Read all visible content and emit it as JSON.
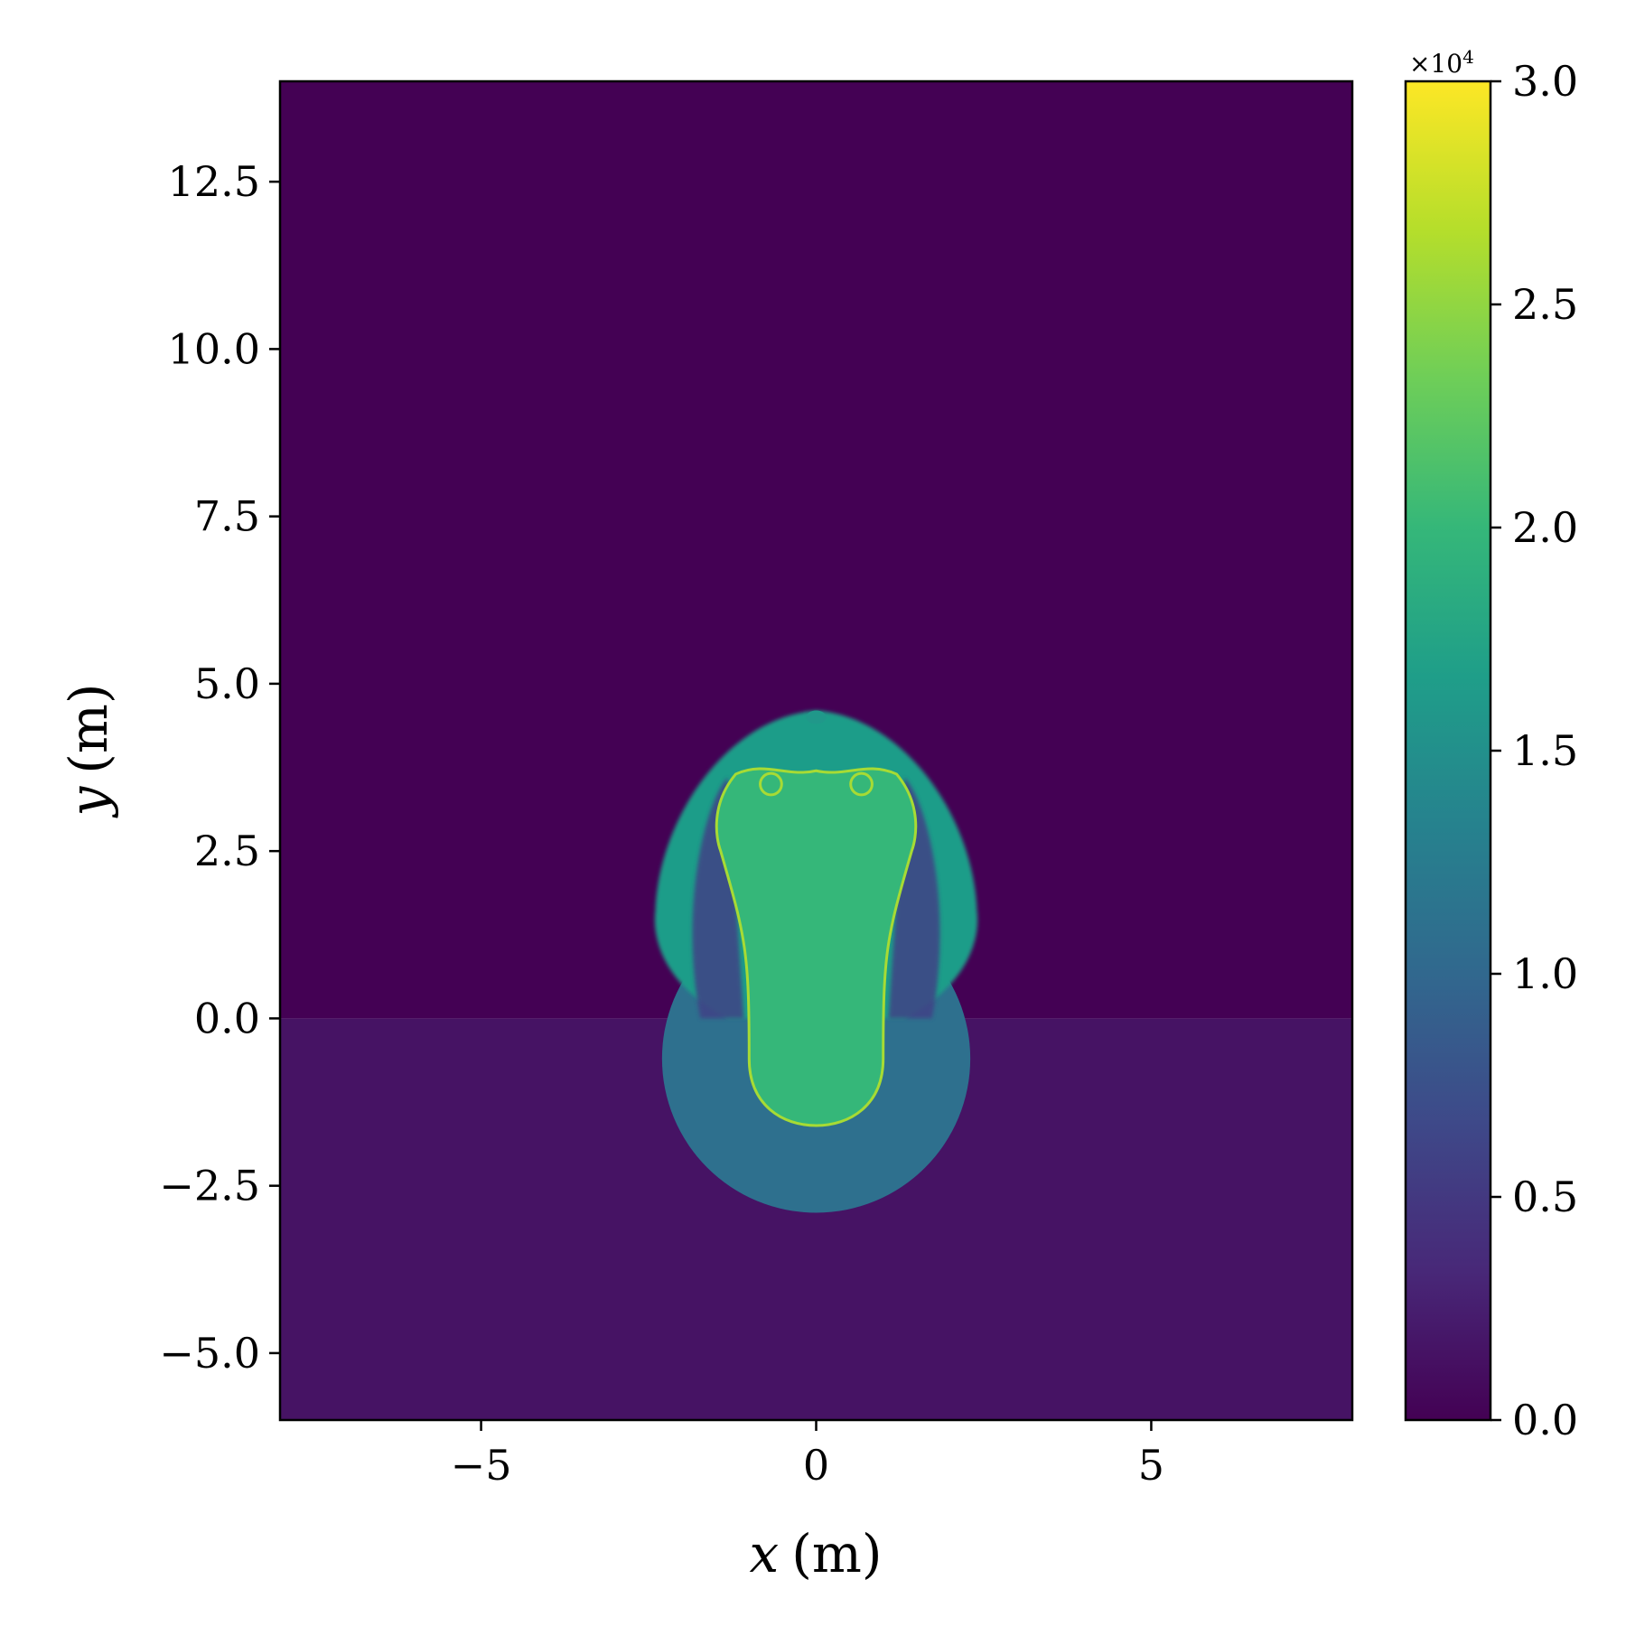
{
  "chart_data": {
    "type": "heatmap",
    "title": "",
    "xlabel_var": "x",
    "xlabel_unit": "(m)",
    "ylabel_var": "y",
    "ylabel_unit": "(m)",
    "xlim": [
      -8,
      8
    ],
    "ylim": [
      -6,
      14
    ],
    "x_ticks": [
      -5,
      0,
      5
    ],
    "x_tick_labels": [
      "−5",
      "0",
      "5"
    ],
    "y_ticks": [
      -5,
      -2.5,
      0,
      2.5,
      5,
      7.5,
      10,
      12.5
    ],
    "y_tick_labels": [
      "−5.0",
      "−2.5",
      "0.0",
      "2.5",
      "5.0",
      "7.5",
      "10.0",
      "12.5"
    ],
    "grid": false,
    "colormap": "viridis",
    "colorbar": {
      "range": [
        0,
        3
      ],
      "ticks": [
        0,
        0.5,
        1,
        1.5,
        2,
        2.5,
        3
      ],
      "tick_labels": [
        "0.0",
        "0.5",
        "1.0",
        "1.5",
        "2.0",
        "2.5",
        "3.0"
      ],
      "multiplier": "×10",
      "multiplier_exponent": "4",
      "colors": [
        "#440154",
        "#482878",
        "#3e4989",
        "#31688e",
        "#26828e",
        "#1f9e89",
        "#35b779",
        "#6ece58",
        "#b5de2b",
        "#fde725"
      ]
    },
    "background": [
      {
        "region": "y > 0",
        "value": 0.0
      },
      {
        "region": "y < 0",
        "value": 0.15
      }
    ],
    "features": [
      {
        "name": "outer shock front above interface",
        "value": 1.5,
        "center_x": 0,
        "center_y": 1.6,
        "half_width": 2.4,
        "top_y": 4.6
      },
      {
        "name": "transmitted shock circle below interface",
        "value": 1.1,
        "center_x": 0,
        "center_y": -0.6,
        "radius": 2.3
      },
      {
        "name": "inner bubble",
        "value": 2.0,
        "center_x": 0,
        "top_y": 3.8,
        "bottom_y": -1.6,
        "half_width_top": 1.5,
        "half_width_bottom": 1.0
      },
      {
        "name": "bubble boundary",
        "value": 2.6
      }
    ]
  }
}
